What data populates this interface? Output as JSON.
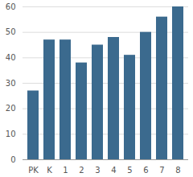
{
  "chart_data": {
    "type": "bar",
    "categories": [
      "PK",
      "K",
      "1",
      "2",
      "3",
      "4",
      "5",
      "6",
      "7",
      "8"
    ],
    "values": [
      27,
      47,
      47,
      38,
      45,
      48,
      41,
      50,
      56,
      60
    ],
    "color": "#3b6a8e",
    "ylim": [
      0,
      60
    ],
    "yticks": [
      0,
      10,
      20,
      30,
      40,
      50,
      60
    ],
    "grid": true
  }
}
